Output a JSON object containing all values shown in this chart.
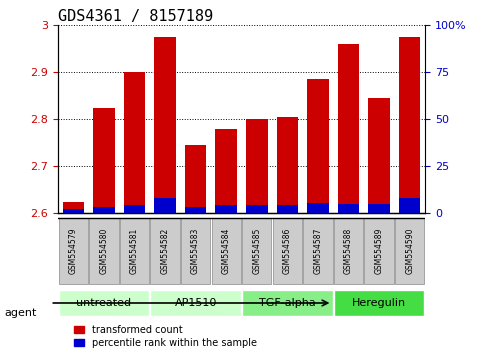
{
  "title": "GDS4361 / 8157189",
  "categories": [
    "GSM554579",
    "GSM554580",
    "GSM554581",
    "GSM554582",
    "GSM554583",
    "GSM554584",
    "GSM554585",
    "GSM554586",
    "GSM554587",
    "GSM554588",
    "GSM554589",
    "GSM554590"
  ],
  "red_values": [
    2.623,
    2.823,
    2.9,
    2.975,
    2.745,
    2.778,
    2.8,
    2.805,
    2.885,
    2.96,
    2.845,
    2.973
  ],
  "blue_values": [
    2.6085,
    2.612,
    2.618,
    2.632,
    2.613,
    2.617,
    2.617,
    2.617,
    2.622,
    2.62,
    2.619,
    2.632
  ],
  "ylim": [
    2.6,
    3.0
  ],
  "yticks": [
    2.6,
    2.7,
    2.8,
    2.9,
    3.0
  ],
  "ytick_labels": [
    "2.6",
    "2.7",
    "2.8",
    "2.9",
    "3"
  ],
  "y2ticks_pct": [
    0,
    25,
    50,
    75,
    100
  ],
  "y2tick_labels": [
    "0",
    "25",
    "50",
    "75",
    "100%"
  ],
  "bar_color_red": "#cc0000",
  "bar_color_blue": "#0000cc",
  "bar_width": 0.7,
  "groups": [
    {
      "label": "untreated",
      "start": 0,
      "end": 2,
      "color": "#ccffcc"
    },
    {
      "label": "AP1510",
      "start": 3,
      "end": 5,
      "color": "#ccffcc"
    },
    {
      "label": "TGF-alpha",
      "start": 6,
      "end": 8,
      "color": "#88ee88"
    },
    {
      "label": "Heregulin",
      "start": 9,
      "end": 11,
      "color": "#44dd44"
    }
  ],
  "agent_label": "agent",
  "legend_red": "transformed count",
  "legend_blue": "percentile rank within the sample",
  "left_tick_color": "#cc0000",
  "right_tick_color": "#0000cc",
  "title_fontsize": 11,
  "sample_box_color": "#cccccc",
  "sample_box_edge": "#888888",
  "plot_bg": "#ffffff"
}
